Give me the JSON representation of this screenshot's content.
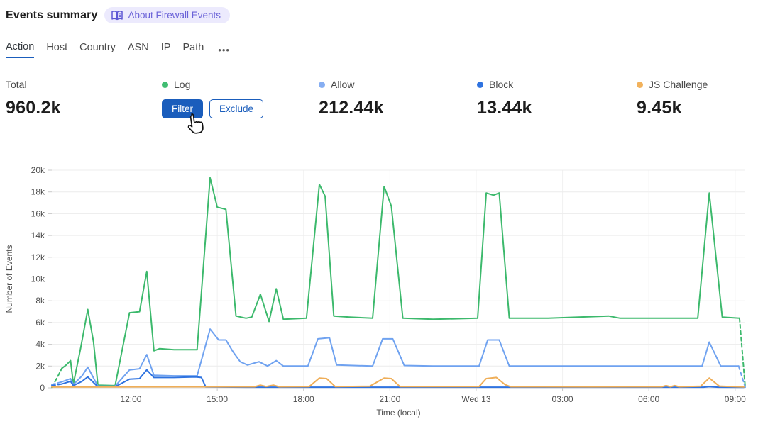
{
  "header": {
    "title": "Events summary",
    "badge": {
      "label": "About Firewall Events",
      "icon": "book-icon"
    }
  },
  "tabs": {
    "items": [
      {
        "label": "Action",
        "active": true
      },
      {
        "label": "Host",
        "active": false
      },
      {
        "label": "Country",
        "active": false
      },
      {
        "label": "ASN",
        "active": false
      },
      {
        "label": "IP",
        "active": false
      },
      {
        "label": "Path",
        "active": false
      }
    ],
    "more_label": "•••"
  },
  "stats": {
    "total": {
      "label": "Total",
      "value": "960.2k"
    },
    "log": {
      "label": "Log",
      "color": "#41bd72",
      "filter_label": "Filter",
      "exclude_label": "Exclude"
    },
    "allow": {
      "label": "Allow",
      "value": "212.44k",
      "color": "#86aef2"
    },
    "block": {
      "label": "Block",
      "value": "13.44k",
      "color": "#2f73e0"
    },
    "js_challenge": {
      "label": "JS Challenge",
      "value": "9.45k",
      "color": "#f2b25c"
    }
  },
  "chart_data": {
    "type": "line",
    "xlabel": "Time (local)",
    "ylabel": "Number of Events",
    "x_unit": "hours (local time, 9:15 Tue → 9:20 Wed)",
    "xlim": [
      9.25,
      33.35
    ],
    "ylim": [
      0,
      20000
    ],
    "grid": true,
    "y_ticks": [
      {
        "v": 0,
        "label": "0"
      },
      {
        "v": 2000,
        "label": "2k"
      },
      {
        "v": 4000,
        "label": "4k"
      },
      {
        "v": 6000,
        "label": "6k"
      },
      {
        "v": 8000,
        "label": "8k"
      },
      {
        "v": 10000,
        "label": "10k"
      },
      {
        "v": 12000,
        "label": "12k"
      },
      {
        "v": 14000,
        "label": "14k"
      },
      {
        "v": 16000,
        "label": "16k"
      },
      {
        "v": 18000,
        "label": "18k"
      },
      {
        "v": 20000,
        "label": "20k"
      }
    ],
    "x_ticks": [
      {
        "t": 12,
        "label": "12:00"
      },
      {
        "t": 15,
        "label": "15:00"
      },
      {
        "t": 18,
        "label": "18:00"
      },
      {
        "t": 21,
        "label": "21:00"
      },
      {
        "t": 24,
        "label": "Wed 13"
      },
      {
        "t": 27,
        "label": "03:00"
      },
      {
        "t": 30,
        "label": "06:00"
      },
      {
        "t": 33,
        "label": "09:00"
      }
    ],
    "legend_position": "stats-row-above",
    "series": [
      {
        "name": "Log",
        "color": "#3cb96c",
        "dash_head": 2,
        "dash_tail": 1,
        "points": [
          [
            9.25,
            50
          ],
          [
            9.45,
            1000
          ],
          [
            9.6,
            1800
          ],
          [
            9.75,
            2100
          ],
          [
            9.9,
            2500
          ],
          [
            10.0,
            350
          ],
          [
            10.25,
            3600
          ],
          [
            10.5,
            7200
          ],
          [
            10.7,
            4200
          ],
          [
            10.85,
            250
          ],
          [
            11.45,
            200
          ],
          [
            11.95,
            6900
          ],
          [
            12.3,
            7000
          ],
          [
            12.55,
            10700
          ],
          [
            12.8,
            3400
          ],
          [
            13.0,
            3600
          ],
          [
            13.5,
            3500
          ],
          [
            14.3,
            3500
          ],
          [
            14.75,
            19300
          ],
          [
            15.0,
            16600
          ],
          [
            15.3,
            16400
          ],
          [
            15.65,
            6600
          ],
          [
            16.0,
            6400
          ],
          [
            16.2,
            6500
          ],
          [
            16.5,
            8600
          ],
          [
            16.8,
            6100
          ],
          [
            17.05,
            9100
          ],
          [
            17.3,
            6300
          ],
          [
            18.1,
            6400
          ],
          [
            18.55,
            18700
          ],
          [
            18.75,
            17600
          ],
          [
            19.05,
            6600
          ],
          [
            19.6,
            6500
          ],
          [
            20.4,
            6400
          ],
          [
            20.8,
            18500
          ],
          [
            21.05,
            16700
          ],
          [
            21.45,
            6400
          ],
          [
            22.5,
            6300
          ],
          [
            24.05,
            6400
          ],
          [
            24.35,
            17900
          ],
          [
            24.6,
            17700
          ],
          [
            24.8,
            17900
          ],
          [
            25.15,
            6400
          ],
          [
            26.5,
            6400
          ],
          [
            28.6,
            6600
          ],
          [
            29.0,
            6400
          ],
          [
            31.7,
            6400
          ],
          [
            32.1,
            17900
          ],
          [
            32.55,
            6500
          ],
          [
            33.15,
            6400
          ],
          [
            33.35,
            50
          ]
        ]
      },
      {
        "name": "Allow",
        "color": "#6fa2f0",
        "dash_head": 1,
        "dash_tail": 1,
        "points": [
          [
            9.25,
            300
          ],
          [
            9.6,
            550
          ],
          [
            9.9,
            850
          ],
          [
            10.0,
            300
          ],
          [
            10.3,
            1100
          ],
          [
            10.5,
            1900
          ],
          [
            10.85,
            150
          ],
          [
            11.45,
            150
          ],
          [
            11.95,
            1650
          ],
          [
            12.3,
            1750
          ],
          [
            12.55,
            3050
          ],
          [
            12.8,
            1150
          ],
          [
            13.5,
            1100
          ],
          [
            14.3,
            1100
          ],
          [
            14.75,
            5400
          ],
          [
            15.05,
            4400
          ],
          [
            15.3,
            4400
          ],
          [
            15.55,
            3300
          ],
          [
            15.8,
            2400
          ],
          [
            16.05,
            2100
          ],
          [
            16.45,
            2400
          ],
          [
            16.75,
            2000
          ],
          [
            17.05,
            2500
          ],
          [
            17.3,
            2000
          ],
          [
            18.15,
            2000
          ],
          [
            18.5,
            4500
          ],
          [
            18.9,
            4600
          ],
          [
            19.15,
            2100
          ],
          [
            20.4,
            2000
          ],
          [
            20.75,
            4500
          ],
          [
            21.1,
            4500
          ],
          [
            21.5,
            2050
          ],
          [
            22.5,
            2000
          ],
          [
            24.1,
            2000
          ],
          [
            24.4,
            4400
          ],
          [
            24.8,
            4400
          ],
          [
            25.15,
            2000
          ],
          [
            28.0,
            2000
          ],
          [
            31.85,
            2000
          ],
          [
            32.1,
            4200
          ],
          [
            32.5,
            2000
          ],
          [
            33.12,
            2000
          ],
          [
            33.35,
            50
          ]
        ]
      },
      {
        "name": "Block",
        "color": "#2f73e0",
        "dash_head": 1,
        "dash_tail": 0,
        "points": [
          [
            9.25,
            200
          ],
          [
            9.6,
            350
          ],
          [
            9.9,
            600
          ],
          [
            10.0,
            200
          ],
          [
            10.3,
            600
          ],
          [
            10.5,
            1000
          ],
          [
            10.85,
            100
          ],
          [
            11.45,
            100
          ],
          [
            11.95,
            800
          ],
          [
            12.3,
            850
          ],
          [
            12.55,
            1650
          ],
          [
            12.8,
            950
          ],
          [
            13.5,
            950
          ],
          [
            14.25,
            1000
          ],
          [
            14.45,
            950
          ],
          [
            14.6,
            80
          ],
          [
            16.0,
            60
          ],
          [
            18.0,
            60
          ],
          [
            20.0,
            60
          ],
          [
            22.0,
            60
          ],
          [
            24.0,
            60
          ],
          [
            26.0,
            60
          ],
          [
            28.0,
            60
          ],
          [
            30.0,
            60
          ],
          [
            31.9,
            60
          ],
          [
            32.1,
            120
          ],
          [
            32.4,
            60
          ],
          [
            33.3,
            50
          ]
        ]
      },
      {
        "name": "JS Challenge",
        "color": "#efae58",
        "dash_head": 0,
        "dash_tail": 0,
        "points": [
          [
            9.25,
            80
          ],
          [
            12.0,
            90
          ],
          [
            14.5,
            100
          ],
          [
            16.3,
            100
          ],
          [
            16.5,
            250
          ],
          [
            16.7,
            120
          ],
          [
            16.95,
            250
          ],
          [
            17.15,
            100
          ],
          [
            18.2,
            120
          ],
          [
            18.55,
            900
          ],
          [
            18.8,
            850
          ],
          [
            19.1,
            120
          ],
          [
            20.3,
            150
          ],
          [
            20.8,
            900
          ],
          [
            21.05,
            850
          ],
          [
            21.35,
            120
          ],
          [
            24.1,
            120
          ],
          [
            24.35,
            850
          ],
          [
            24.7,
            950
          ],
          [
            25.0,
            300
          ],
          [
            25.2,
            100
          ],
          [
            28.0,
            90
          ],
          [
            30.45,
            100
          ],
          [
            30.6,
            200
          ],
          [
            30.75,
            100
          ],
          [
            30.9,
            200
          ],
          [
            31.05,
            100
          ],
          [
            31.8,
            150
          ],
          [
            32.1,
            900
          ],
          [
            32.45,
            150
          ],
          [
            33.3,
            80
          ]
        ]
      }
    ]
  }
}
